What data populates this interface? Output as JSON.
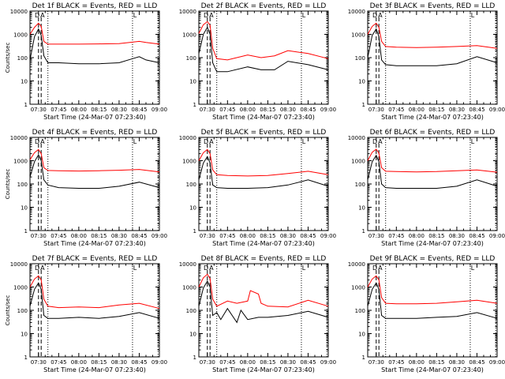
{
  "colors": {
    "background": "#ffffff",
    "events": "#000000",
    "lld": "#ff0000",
    "axes": "#000000"
  },
  "chart_data": [
    {
      "type": "line",
      "title": "Det 1f BLACK = Events, RED = LLD",
      "xlabel": "Start Time (24-Mar-07 07:23:40)",
      "ylabel": "Counts/sec",
      "x_tick_labels": [
        "07:30",
        "07:45",
        "08:00",
        "08:15",
        "08:30",
        "08:45",
        "09:00"
      ],
      "y_tick_labels": [
        "1",
        "10",
        "100",
        "1000",
        "10000"
      ],
      "x_range": [
        "07:23:40",
        "09:00"
      ],
      "y_range": [
        1,
        10000
      ],
      "y_scale": "log",
      "markers": [
        "D",
        "A",
        "L"
      ],
      "series": [
        {
          "color": "red",
          "x": [
            "07:23:40",
            "07:27",
            "07:30",
            "07:32",
            "07:34",
            "07:37",
            "07:45",
            "08:00",
            "08:15",
            "08:30",
            "08:45",
            "08:50",
            "09:00"
          ],
          "values": [
            1000,
            2000,
            3000,
            2200,
            500,
            380,
            380,
            380,
            390,
            400,
            500,
            450,
            380
          ]
        },
        {
          "color": "black",
          "x": [
            "07:23:40",
            "07:27",
            "07:30",
            "07:32",
            "07:34",
            "07:37",
            "07:45",
            "08:00",
            "08:15",
            "08:30",
            "08:40",
            "08:45",
            "08:50",
            "09:00"
          ],
          "values": [
            80,
            800,
            1700,
            900,
            120,
            60,
            60,
            55,
            55,
            60,
            90,
            110,
            80,
            60
          ]
        }
      ]
    },
    {
      "type": "line",
      "title": "Det 2f BLACK = Events, RED = LLD",
      "xlabel": "Start Time (24-Mar-07 07:23:40)",
      "ylabel": "",
      "x_tick_labels": [
        "07:30",
        "07:45",
        "08:00",
        "08:15",
        "08:30",
        "08:45",
        "09:00"
      ],
      "y_tick_labels": [
        "1",
        "10",
        "100",
        "1000",
        "10000"
      ],
      "x_range": [
        "07:23:40",
        "09:00"
      ],
      "y_range": [
        1,
        10000
      ],
      "y_scale": "log",
      "markers": [
        "D",
        "A",
        "L"
      ],
      "series": [
        {
          "color": "red",
          "x": [
            "07:23:40",
            "07:27",
            "07:30",
            "07:32",
            "07:34",
            "07:37",
            "07:45",
            "08:00",
            "08:10",
            "08:20",
            "08:30",
            "08:45",
            "09:00"
          ],
          "values": [
            1100,
            2600,
            3500,
            2500,
            250,
            90,
            80,
            130,
            100,
            120,
            200,
            150,
            90
          ]
        },
        {
          "color": "black",
          "x": [
            "07:23:40",
            "07:27",
            "07:30",
            "07:32",
            "07:34",
            "07:37",
            "07:45",
            "08:00",
            "08:10",
            "08:20",
            "08:30",
            "08:45",
            "09:00"
          ],
          "values": [
            150,
            1000,
            2000,
            1000,
            60,
            25,
            25,
            40,
            30,
            30,
            70,
            50,
            30
          ]
        }
      ]
    },
    {
      "type": "line",
      "title": "Det 3f BLACK = Events, RED = LLD",
      "xlabel": "Start Time (24-Mar-07 07:23:40)",
      "ylabel": "",
      "x_tick_labels": [
        "07:30",
        "07:45",
        "08:00",
        "08:15",
        "08:30",
        "08:45",
        "09:00"
      ],
      "y_tick_labels": [
        "1",
        "10",
        "100",
        "1000",
        "10000"
      ],
      "x_range": [
        "07:23:40",
        "09:00"
      ],
      "y_range": [
        1,
        10000
      ],
      "y_scale": "log",
      "markers": [
        "D",
        "A",
        "L"
      ],
      "series": [
        {
          "color": "red",
          "x": [
            "07:23:40",
            "07:27",
            "07:30",
            "07:32",
            "07:34",
            "07:37",
            "07:45",
            "08:00",
            "08:15",
            "08:30",
            "08:45",
            "09:00"
          ],
          "values": [
            1000,
            2200,
            3000,
            2000,
            500,
            300,
            280,
            270,
            280,
            300,
            330,
            250
          ]
        },
        {
          "color": "black",
          "x": [
            "07:23:40",
            "07:27",
            "07:30",
            "07:32",
            "07:34",
            "07:37",
            "07:45",
            "08:00",
            "08:15",
            "08:30",
            "08:45",
            "09:00"
          ],
          "values": [
            100,
            900,
            1700,
            800,
            80,
            50,
            45,
            45,
            45,
            55,
            110,
            60
          ]
        }
      ]
    },
    {
      "type": "line",
      "title": "Det 4f BLACK = Events, RED = LLD",
      "xlabel": "Start Time (24-Mar-07 07:23:40)",
      "ylabel": "Counts/sec",
      "x_tick_labels": [
        "07:30",
        "07:45",
        "08:00",
        "08:15",
        "08:30",
        "08:45",
        "09:00"
      ],
      "y_tick_labels": [
        "1",
        "10",
        "100",
        "1000",
        "10000"
      ],
      "x_range": [
        "07:23:40",
        "09:00"
      ],
      "y_range": [
        1,
        10000
      ],
      "y_scale": "log",
      "markers": [
        "D",
        "A",
        "L"
      ],
      "series": [
        {
          "color": "red",
          "x": [
            "07:23:40",
            "07:27",
            "07:30",
            "07:32",
            "07:34",
            "07:37",
            "07:45",
            "08:00",
            "08:15",
            "08:30",
            "08:45",
            "09:00"
          ],
          "values": [
            1100,
            2200,
            3000,
            2000,
            500,
            380,
            370,
            360,
            370,
            390,
            420,
            330
          ]
        },
        {
          "color": "black",
          "x": [
            "07:23:40",
            "07:27",
            "07:30",
            "07:32",
            "07:34",
            "07:37",
            "07:45",
            "08:00",
            "08:15",
            "08:30",
            "08:45",
            "09:00"
          ],
          "values": [
            200,
            900,
            1800,
            1000,
            150,
            90,
            70,
            65,
            65,
            80,
            120,
            70
          ]
        }
      ]
    },
    {
      "type": "line",
      "title": "Det 5f BLACK = Events, RED = LLD",
      "xlabel": "Start Time (24-Mar-07 07:23:40)",
      "ylabel": "",
      "x_tick_labels": [
        "07:30",
        "07:45",
        "08:00",
        "08:15",
        "08:30",
        "08:45",
        "09:00"
      ],
      "y_tick_labels": [
        "1",
        "10",
        "100",
        "1000",
        "10000"
      ],
      "x_range": [
        "07:23:40",
        "09:00"
      ],
      "y_range": [
        1,
        10000
      ],
      "y_scale": "log",
      "markers": [
        "D",
        "A",
        "L"
      ],
      "series": [
        {
          "color": "red",
          "x": [
            "07:23:40",
            "07:27",
            "07:30",
            "07:32",
            "07:34",
            "07:37",
            "07:45",
            "08:00",
            "08:15",
            "08:30",
            "08:45",
            "09:00"
          ],
          "values": [
            1000,
            2200,
            3000,
            2000,
            400,
            250,
            230,
            220,
            230,
            280,
            350,
            250
          ]
        },
        {
          "color": "black",
          "x": [
            "07:23:40",
            "07:27",
            "07:30",
            "07:32",
            "07:34",
            "07:37",
            "07:45",
            "08:00",
            "08:15",
            "08:30",
            "08:45",
            "09:00"
          ],
          "values": [
            150,
            800,
            1500,
            800,
            90,
            70,
            65,
            65,
            70,
            90,
            150,
            80
          ]
        }
      ]
    },
    {
      "type": "line",
      "title": "Det 6f BLACK = Events, RED = LLD",
      "xlabel": "Start Time (24-Mar-07 07:23:40)",
      "ylabel": "",
      "x_tick_labels": [
        "07:30",
        "07:45",
        "08:00",
        "08:15",
        "08:30",
        "08:45",
        "09:00"
      ],
      "y_tick_labels": [
        "1",
        "10",
        "100",
        "1000",
        "10000"
      ],
      "x_range": [
        "07:23:40",
        "09:00"
      ],
      "y_range": [
        1,
        10000
      ],
      "y_scale": "log",
      "markers": [
        "D",
        "A",
        "L"
      ],
      "series": [
        {
          "color": "red",
          "x": [
            "07:23:40",
            "07:27",
            "07:30",
            "07:32",
            "07:34",
            "07:37",
            "07:45",
            "08:00",
            "08:15",
            "08:30",
            "08:45",
            "09:00"
          ],
          "values": [
            1000,
            2300,
            3100,
            2100,
            500,
            350,
            340,
            330,
            340,
            370,
            400,
            320
          ]
        },
        {
          "color": "black",
          "x": [
            "07:23:40",
            "07:27",
            "07:30",
            "07:32",
            "07:34",
            "07:37",
            "07:45",
            "08:00",
            "08:15",
            "08:30",
            "08:45",
            "09:00"
          ],
          "values": [
            150,
            900,
            1700,
            900,
            100,
            70,
            65,
            65,
            65,
            80,
            150,
            80
          ]
        }
      ]
    },
    {
      "type": "line",
      "title": "Det 7f BLACK = Events, RED = LLD",
      "xlabel": "Start Time (24-Mar-07 07:23:40)",
      "ylabel": "Counts/sec",
      "x_tick_labels": [
        "07:30",
        "07:45",
        "08:00",
        "08:15",
        "08:30",
        "08:45",
        "09:00"
      ],
      "y_tick_labels": [
        "1",
        "10",
        "100",
        "1000",
        "10000"
      ],
      "x_range": [
        "07:23:40",
        "09:00"
      ],
      "y_range": [
        1,
        10000
      ],
      "y_scale": "log",
      "markers": [
        "D",
        "A",
        "L"
      ],
      "series": [
        {
          "color": "red",
          "x": [
            "07:23:40",
            "07:27",
            "07:30",
            "07:32",
            "07:34",
            "07:37",
            "07:45",
            "08:00",
            "08:15",
            "08:30",
            "08:45",
            "09:00"
          ],
          "values": [
            1000,
            2200,
            3000,
            2000,
            300,
            150,
            130,
            140,
            130,
            170,
            200,
            120
          ]
        },
        {
          "color": "black",
          "x": [
            "07:23:40",
            "07:27",
            "07:30",
            "07:32",
            "07:34",
            "07:37",
            "07:45",
            "08:00",
            "08:15",
            "08:30",
            "08:45",
            "09:00"
          ],
          "values": [
            150,
            800,
            1500,
            800,
            60,
            45,
            45,
            50,
            45,
            55,
            80,
            45
          ]
        }
      ]
    },
    {
      "type": "line",
      "title": "Det 8f BLACK = Events, RED = LLD",
      "xlabel": "Start Time (24-Mar-07 07:23:40)",
      "ylabel": "",
      "x_tick_labels": [
        "07:30",
        "07:45",
        "08:00",
        "08:15",
        "08:30",
        "08:45",
        "09:00"
      ],
      "y_tick_labels": [
        "1",
        "10",
        "100",
        "1000",
        "10000"
      ],
      "x_range": [
        "07:23:40",
        "09:00"
      ],
      "y_range": [
        1,
        10000
      ],
      "y_scale": "log",
      "markers": [
        "D",
        "A",
        "L"
      ],
      "series": [
        {
          "color": "red",
          "x": [
            "07:23:40",
            "07:27",
            "07:30",
            "07:32",
            "07:34",
            "07:37",
            "07:45",
            "07:52",
            "08:00",
            "08:02",
            "08:08",
            "08:10",
            "08:15",
            "08:30",
            "08:45",
            "09:00"
          ],
          "values": [
            1000,
            2500,
            3500,
            2300,
            300,
            150,
            250,
            200,
            250,
            700,
            500,
            200,
            150,
            140,
            270,
            150
          ]
        },
        {
          "color": "black",
          "x": [
            "07:23:40",
            "07:27",
            "07:30",
            "07:32",
            "07:34",
            "07:37",
            "07:40",
            "07:45",
            "07:52",
            "07:55",
            "08:00",
            "08:08",
            "08:15",
            "08:30",
            "08:45",
            "09:00"
          ],
          "values": [
            150,
            900,
            1800,
            1000,
            60,
            80,
            40,
            120,
            30,
            100,
            40,
            50,
            50,
            60,
            90,
            50
          ]
        }
      ]
    },
    {
      "type": "line",
      "title": "Det 9f BLACK = Events, RED = LLD",
      "xlabel": "Start Time (24-Mar-07 07:23:40)",
      "ylabel": "",
      "x_tick_labels": [
        "07:30",
        "07:45",
        "08:00",
        "08:15",
        "08:30",
        "08:45",
        "09:00"
      ],
      "y_tick_labels": [
        "1",
        "10",
        "100",
        "1000",
        "10000"
      ],
      "x_range": [
        "07:23:40",
        "09:00"
      ],
      "y_range": [
        1,
        10000
      ],
      "y_scale": "log",
      "markers": [
        "D",
        "A",
        "L"
      ],
      "series": [
        {
          "color": "red",
          "x": [
            "07:23:40",
            "07:27",
            "07:30",
            "07:32",
            "07:34",
            "07:37",
            "07:45",
            "08:00",
            "08:15",
            "08:30",
            "08:45",
            "09:00"
          ],
          "values": [
            1000,
            2200,
            3000,
            2000,
            350,
            200,
            190,
            190,
            200,
            230,
            270,
            200
          ]
        },
        {
          "color": "black",
          "x": [
            "07:23:40",
            "07:27",
            "07:30",
            "07:32",
            "07:34",
            "07:37",
            "07:45",
            "08:00",
            "08:15",
            "08:30",
            "08:45",
            "09:00"
          ],
          "values": [
            150,
            800,
            1500,
            800,
            60,
            45,
            45,
            45,
            50,
            55,
            80,
            45
          ]
        }
      ]
    }
  ]
}
